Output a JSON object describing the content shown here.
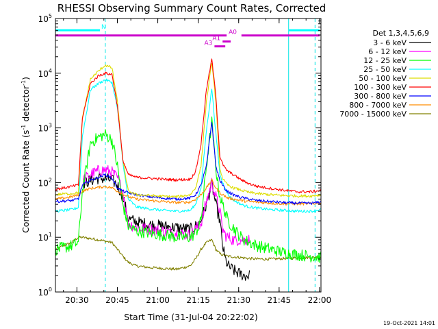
{
  "chart_data": {
    "type": "line",
    "title": "RHESSI Observing Summary Count Rates, Corrected",
    "xlabel": "Start Time (31-Jul-04 20:22:02)",
    "ylabel_main": "Corrected Count Rate (s",
    "ylabel_exp1": "-1",
    "ylabel_mid": " detector",
    "ylabel_exp2": "-1",
    "ylabel_end": ")",
    "x_unit": "minutes after 20:22:02",
    "xlim": [
      0,
      98.5
    ],
    "ylim": [
      1,
      100000
    ],
    "yscale": "log",
    "x_ticks": [
      {
        "label": "20:30",
        "value": 7.97
      },
      {
        "label": "20:45",
        "value": 22.97
      },
      {
        "label": "21:00",
        "value": 37.97
      },
      {
        "label": "21:15",
        "value": 52.97
      },
      {
        "label": "21:30",
        "value": 67.97
      },
      {
        "label": "21:45",
        "value": 82.97
      },
      {
        "label": "22:00",
        "value": 97.97
      }
    ],
    "y_ticks": [
      {
        "base": "10",
        "exp": "0",
        "value": 1
      },
      {
        "base": "10",
        "exp": "1",
        "value": 10
      },
      {
        "base": "10",
        "exp": "2",
        "value": 100
      },
      {
        "base": "10",
        "exp": "3",
        "value": 1000
      },
      {
        "base": "10",
        "exp": "4",
        "value": 10000
      },
      {
        "base": "10",
        "exp": "5",
        "value": 100000
      }
    ],
    "legend_title": "Det 1,3,4,5,6,9",
    "series": [
      {
        "name": "3 - 6 keV",
        "color": "#000000",
        "x": [
          0,
          3,
          6,
          8.5,
          10,
          13,
          16,
          18.5,
          21,
          23,
          25,
          27,
          30,
          35,
          40,
          45,
          50,
          52,
          54,
          56,
          58,
          59.5,
          61,
          62,
          63,
          64,
          66,
          68,
          70,
          72,
          75,
          80,
          85,
          90,
          95,
          98.5
        ],
        "y": [
          null,
          null,
          null,
          null,
          95,
          110,
          120,
          118,
          110,
          90,
          55,
          22,
          19,
          17,
          16,
          15,
          14,
          16,
          20,
          40,
          95,
          40,
          20,
          7,
          4,
          3,
          2.5,
          2.2,
          2.0,
          2.0,
          null,
          null,
          null,
          null,
          null,
          null
        ]
      },
      {
        "name": "6 - 12 keV",
        "color": "#ff00ff",
        "x": [
          0,
          3,
          6,
          8.5,
          10,
          13,
          16,
          18.5,
          21,
          23,
          25,
          27,
          30,
          35,
          40,
          45,
          50,
          52,
          54,
          56,
          58,
          59.5,
          61,
          62,
          63,
          64,
          66,
          68,
          70,
          72,
          75,
          80,
          85,
          90,
          95,
          98.5
        ],
        "y": [
          null,
          null,
          null,
          null,
          110,
          140,
          165,
          170,
          155,
          120,
          70,
          18,
          15,
          14,
          13,
          12,
          11,
          14,
          18,
          45,
          100,
          55,
          30,
          14,
          11,
          10,
          9,
          9,
          9,
          9,
          null,
          null,
          null,
          null,
          null,
          null
        ]
      },
      {
        "name": "12 - 25 keV",
        "color": "#00ff00",
        "x": [
          0,
          3,
          6,
          8.5,
          10,
          13,
          16,
          18.5,
          21,
          23,
          25,
          27,
          30,
          35,
          40,
          45,
          50,
          52,
          54,
          56,
          58,
          59.5,
          61,
          62,
          63,
          64,
          66,
          68,
          70,
          72,
          75,
          80,
          85,
          90,
          95,
          98.5
        ],
        "y": [
          6,
          6.5,
          7,
          8,
          70,
          520,
          680,
          760,
          600,
          200,
          40,
          16,
          13,
          12,
          11,
          10,
          10,
          12,
          20,
          200,
          1300,
          180,
          55,
          40,
          28,
          20,
          15,
          11,
          9,
          8,
          7,
          6,
          5.2,
          4.8,
          4.5,
          4.3
        ]
      },
      {
        "name": "25 - 50 keV",
        "color": "#00ffff",
        "x": [
          0,
          3,
          6,
          8.5,
          10,
          13,
          16,
          18.5,
          21,
          23,
          25,
          27,
          30,
          35,
          40,
          45,
          50,
          52,
          54,
          56,
          58,
          59.5,
          61,
          62,
          63,
          64,
          66,
          68,
          70,
          72,
          75,
          80,
          85,
          90,
          95,
          98.5
        ],
        "y": [
          30,
          31,
          32,
          35,
          700,
          5000,
          6500,
          7600,
          6800,
          2300,
          240,
          50,
          36,
          33,
          31,
          30,
          31,
          40,
          80,
          900,
          5300,
          800,
          140,
          100,
          80,
          60,
          48,
          42,
          38,
          36,
          34,
          32,
          31,
          30,
          30,
          32
        ]
      },
      {
        "name": "50 - 100 keV",
        "color": "#dddd00",
        "x": [
          0,
          3,
          6,
          8.5,
          10,
          13,
          16,
          18.5,
          21,
          23,
          25,
          27,
          30,
          35,
          40,
          45,
          50,
          52,
          54,
          56,
          58,
          59.5,
          61,
          62,
          63,
          64,
          66,
          68,
          70,
          72,
          75,
          80,
          85,
          90,
          95,
          98.5
        ],
        "y": [
          60,
          62,
          63,
          65,
          1500,
          7800,
          11000,
          14000,
          12500,
          3000,
          250,
          70,
          60,
          58,
          56,
          55,
          60,
          80,
          200,
          3000,
          16000,
          3000,
          180,
          120,
          100,
          90,
          80,
          75,
          70,
          66,
          63,
          60,
          58,
          57,
          57,
          60
        ]
      },
      {
        "name": "100 - 300 keV",
        "color": "#ff0000",
        "x": [
          0,
          3,
          6,
          8.5,
          10,
          13,
          16,
          18.5,
          21,
          23,
          25,
          27,
          30,
          35,
          40,
          45,
          50,
          52,
          54,
          56,
          58,
          59.5,
          61,
          62,
          63,
          64,
          66,
          68,
          70,
          72,
          75,
          80,
          85,
          90,
          95,
          98.5
        ],
        "y": [
          75,
          80,
          85,
          90,
          1500,
          6500,
          9000,
          10000,
          9500,
          2500,
          260,
          140,
          125,
          120,
          115,
          112,
          115,
          160,
          500,
          5000,
          18000,
          4000,
          300,
          220,
          180,
          160,
          140,
          120,
          105,
          95,
          85,
          78,
          72,
          68,
          68,
          72
        ]
      },
      {
        "name": "300 - 800 keV",
        "color": "#0000ff",
        "x": [
          0,
          3,
          6,
          8.5,
          10,
          13,
          16,
          18.5,
          21,
          23,
          25,
          27,
          30,
          35,
          40,
          45,
          50,
          52,
          54,
          56,
          58,
          59.5,
          61,
          62,
          63,
          64,
          66,
          68,
          70,
          72,
          75,
          80,
          85,
          90,
          95,
          98.5
        ],
        "y": [
          45,
          46,
          47,
          50,
          90,
          110,
          125,
          140,
          120,
          80,
          70,
          65,
          60,
          55,
          52,
          50,
          52,
          60,
          90,
          200,
          1300,
          200,
          110,
          90,
          75,
          68,
          60,
          55,
          52,
          50,
          47,
          45,
          43,
          42,
          42,
          44
        ]
      },
      {
        "name": "800 - 7000 keV",
        "color": "#ff8c00",
        "x": [
          0,
          3,
          6,
          8.5,
          10,
          13,
          16,
          18.5,
          21,
          23,
          25,
          27,
          30,
          35,
          40,
          45,
          50,
          52,
          54,
          56,
          58,
          59.5,
          61,
          62,
          63,
          64,
          66,
          68,
          70,
          72,
          75,
          80,
          85,
          90,
          95,
          98.5
        ],
        "y": [
          50,
          52,
          55,
          60,
          70,
          78,
          82,
          85,
          80,
          70,
          62,
          55,
          50,
          47,
          45,
          43,
          44,
          50,
          60,
          80,
          110,
          80,
          65,
          60,
          56,
          52,
          50,
          48,
          46,
          45,
          44,
          42,
          41,
          41,
          41,
          43
        ]
      },
      {
        "name": "7000 - 15000 keV",
        "color": "#808000",
        "x": [
          0,
          3,
          6,
          8.5,
          10,
          13,
          16,
          18.5,
          21,
          23,
          25,
          27,
          30,
          35,
          40,
          45,
          50,
          52,
          54,
          56,
          58,
          59.5,
          61,
          62,
          63,
          64,
          66,
          68,
          70,
          72,
          75,
          80,
          85,
          90,
          95,
          98.5
        ],
        "y": [
          6,
          7,
          8,
          10,
          10,
          9.5,
          9,
          8.5,
          8,
          6,
          4.5,
          3.5,
          3,
          2.8,
          2.7,
          2.6,
          3,
          4,
          6,
          8,
          9,
          6,
          5,
          4.8,
          4.6,
          4.5,
          4.4,
          4.3,
          4.2,
          4.1,
          4.0,
          4.0,
          4.1,
          4.2,
          4.3,
          4.4
        ]
      }
    ],
    "dashed_markers": [
      {
        "x": 18.5
      },
      {
        "x": 96.3
      }
    ],
    "solid_markers": [
      {
        "x": 86.5
      }
    ],
    "top_bars": [
      {
        "label": "N",
        "color": "#00ffff",
        "y": 61000,
        "segments": [
          [
            0,
            16.5
          ],
          [
            86.5,
            98
          ]
        ]
      },
      {
        "label": "A0",
        "color": "#cc00cc",
        "y": 49000,
        "segments": [
          [
            0,
            63.5
          ],
          [
            69,
            98
          ]
        ]
      },
      {
        "label": "A1",
        "color": "#cc00cc",
        "y": 38000,
        "segments": [
          [
            62,
            65
          ]
        ]
      },
      {
        "label": "A3",
        "color": "#cc00cc",
        "y": 31000,
        "segments": [
          [
            59,
            63
          ]
        ]
      }
    ],
    "timestamp": "19-Oct-2021 14:01"
  }
}
